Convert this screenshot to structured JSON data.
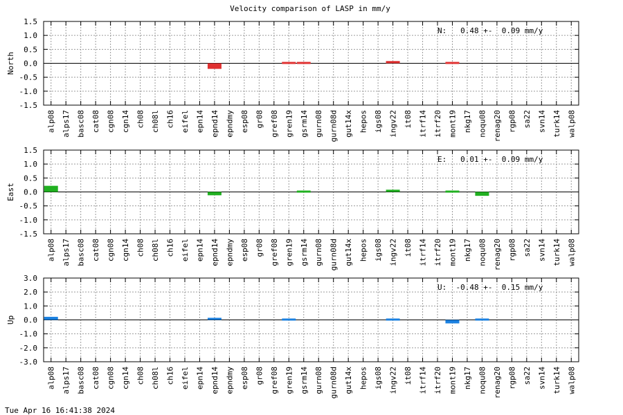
{
  "chart_title": "Velocity comparison of LASP in mm/y",
  "footer_timestamp": "Tue Apr 16 16:41:38 2024",
  "chart_data": {
    "type": "bar",
    "title": "Velocity comparison of LASP in mm/y",
    "categories": [
      "alp08",
      "alps17",
      "basc08",
      "cat08",
      "cgn08",
      "cgn14",
      "ch08",
      "ch08l",
      "ch16",
      "eifel",
      "epn14",
      "epnd14",
      "epndmy",
      "esp08",
      "gr08",
      "gref08",
      "gren19",
      "gsrm14",
      "gurn08",
      "gurn08d",
      "gut14x",
      "hepos",
      "igs08",
      "ingv22",
      "it08",
      "itrf14",
      "itrf20",
      "mont19",
      "nkg17",
      "noqu08",
      "renag20",
      "rgp08",
      "sa22",
      "svn14",
      "turk14",
      "walp08"
    ],
    "panels": [
      {
        "ylabel": "North",
        "color": "#e03030",
        "ylim": [
          -1.5,
          1.5
        ],
        "ticks": [
          "1.5",
          "1.0",
          "0.5",
          "0.0",
          "-0.5",
          "-1.0",
          "-1.5"
        ],
        "tick_values": [
          1.5,
          1.0,
          0.5,
          0.0,
          -0.5,
          -1.0,
          -1.5
        ],
        "summary": "N:   0.48 +-  0.09 mm/y",
        "values": [
          null,
          null,
          null,
          null,
          null,
          null,
          null,
          null,
          null,
          null,
          null,
          -0.2,
          null,
          null,
          null,
          null,
          0.05,
          -0.07,
          null,
          null,
          null,
          null,
          null,
          0.08,
          null,
          null,
          null,
          -0.02,
          null,
          null,
          null,
          null,
          null,
          null,
          null,
          null
        ]
      },
      {
        "ylabel": "East",
        "color": "#20b020",
        "ylim": [
          -1.5,
          1.5
        ],
        "ticks": [
          "1.5",
          "1.0",
          "0.5",
          "0.0",
          "-0.5",
          "-1.0",
          "-1.5"
        ],
        "tick_values": [
          1.5,
          1.0,
          0.5,
          0.0,
          -0.5,
          -1.0,
          -1.5
        ],
        "summary": "E:   0.01 +-  0.09 mm/y",
        "values": [
          0.22,
          null,
          null,
          null,
          null,
          null,
          null,
          null,
          null,
          null,
          null,
          -0.12,
          null,
          null,
          null,
          null,
          null,
          0.06,
          null,
          null,
          null,
          null,
          null,
          0.08,
          null,
          null,
          null,
          0.06,
          null,
          -0.14,
          null,
          null,
          null,
          null,
          null,
          null
        ]
      },
      {
        "ylabel": "Up",
        "color": "#1a80e0",
        "ylim": [
          -3.0,
          3.0
        ],
        "ticks": [
          "3.0",
          "2.0",
          "1.0",
          "0.0",
          "-1.0",
          "-2.0",
          "-3.0"
        ],
        "tick_values": [
          3.0,
          2.0,
          1.0,
          0.0,
          -1.0,
          -2.0,
          -3.0
        ],
        "summary": "U:  -0.48 +-  0.15 mm/y",
        "values": [
          0.22,
          null,
          null,
          null,
          null,
          null,
          null,
          null,
          null,
          null,
          null,
          0.15,
          null,
          null,
          null,
          null,
          0.1,
          null,
          null,
          null,
          null,
          null,
          null,
          -0.06,
          null,
          null,
          null,
          -0.25,
          null,
          0.1,
          null,
          null,
          null,
          null,
          null,
          null
        ]
      }
    ],
    "grid": true
  }
}
